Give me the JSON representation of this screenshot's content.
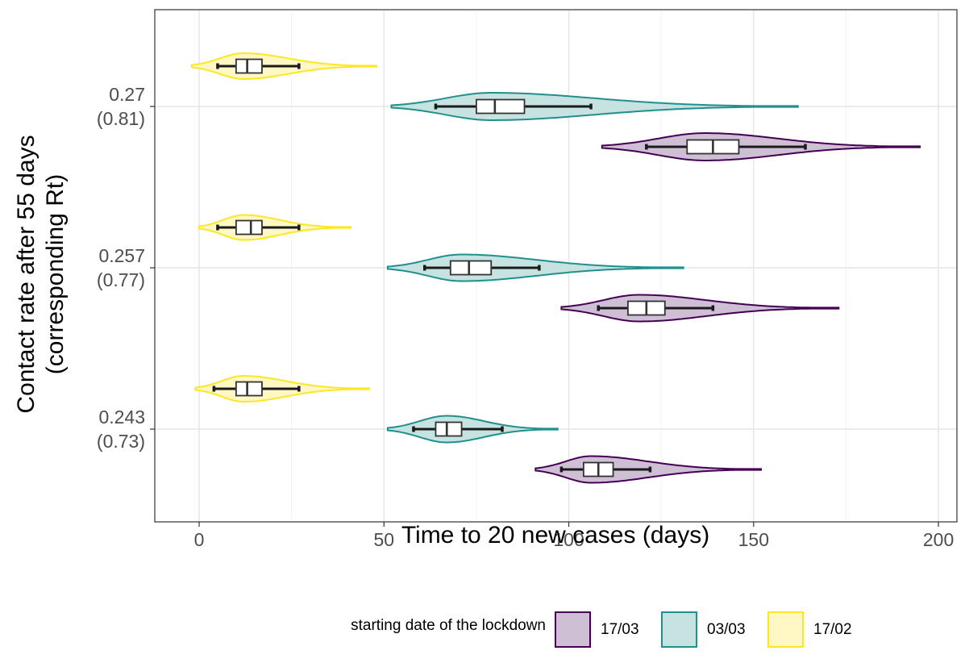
{
  "chart_data": {
    "type": "violin",
    "title": "",
    "xlabel": "Time to 20 new cases (days)",
    "ylabel_line1": "Contact rate after 55 days",
    "ylabel_line2": "(corresponding Rt)",
    "xlim": [
      -12,
      205
    ],
    "xticks": [
      "0",
      "50",
      "100",
      "150",
      "200"
    ],
    "xtick_values": [
      0,
      50,
      100,
      150,
      200
    ],
    "grid": true,
    "legend_position": "bottom",
    "legend_title": "starting date of the lockdown",
    "groups": [
      {
        "label_line1": "0.27",
        "label_line2": "(0.81)"
      },
      {
        "label_line1": "0.257",
        "label_line2": "(0.77)"
      },
      {
        "label_line1": "0.243",
        "label_line2": "(0.73)"
      }
    ],
    "series": [
      {
        "name": "17/03",
        "color": "#440154",
        "fill": "#cfbfd5"
      },
      {
        "name": "03/03",
        "color": "#21908c",
        "fill": "#c6e2e1"
      },
      {
        "name": "17/02",
        "color": "#fde725",
        "fill": "#fff7c4"
      }
    ],
    "distributions": [
      {
        "group": 0,
        "series": "17/02",
        "min": -2,
        "max": 48,
        "mode": 12,
        "half_width": 0.32,
        "whisker_low": 5,
        "q1": 10,
        "median": 13,
        "q3": 17,
        "whisker_high": 27
      },
      {
        "group": 0,
        "series": "03/03",
        "min": 52,
        "max": 162,
        "mode": 79,
        "half_width": 0.34,
        "whisker_low": 64,
        "q1": 75,
        "median": 80,
        "q3": 88,
        "whisker_high": 106
      },
      {
        "group": 0,
        "series": "17/03",
        "min": 109,
        "max": 195,
        "mode": 137,
        "half_width": 0.34,
        "whisker_low": 121,
        "q1": 132,
        "median": 139,
        "q3": 146,
        "whisker_high": 164
      },
      {
        "group": 1,
        "series": "17/02",
        "min": 0,
        "max": 41,
        "mode": 12,
        "half_width": 0.31,
        "whisker_low": 5,
        "q1": 10,
        "median": 14,
        "q3": 17,
        "whisker_high": 27
      },
      {
        "group": 1,
        "series": "03/03",
        "min": 51,
        "max": 131,
        "mode": 71,
        "half_width": 0.33,
        "whisker_low": 61,
        "q1": 68,
        "median": 73,
        "q3": 79,
        "whisker_high": 92
      },
      {
        "group": 1,
        "series": "17/03",
        "min": 98,
        "max": 173,
        "mode": 119,
        "half_width": 0.33,
        "whisker_low": 108,
        "q1": 116,
        "median": 121,
        "q3": 126,
        "whisker_high": 139
      },
      {
        "group": 2,
        "series": "17/02",
        "min": -1,
        "max": 46,
        "mode": 12,
        "half_width": 0.32,
        "whisker_low": 4,
        "q1": 10,
        "median": 13,
        "q3": 17,
        "whisker_high": 27
      },
      {
        "group": 2,
        "series": "03/03",
        "min": 51,
        "max": 97,
        "mode": 67,
        "half_width": 0.33,
        "whisker_low": 58,
        "q1": 64,
        "median": 67,
        "q3": 71,
        "whisker_high": 82
      },
      {
        "group": 2,
        "series": "17/03",
        "min": 91,
        "max": 152,
        "mode": 106,
        "half_width": 0.33,
        "whisker_low": 98,
        "q1": 104,
        "median": 108,
        "q3": 112,
        "whisker_high": 122
      }
    ]
  }
}
